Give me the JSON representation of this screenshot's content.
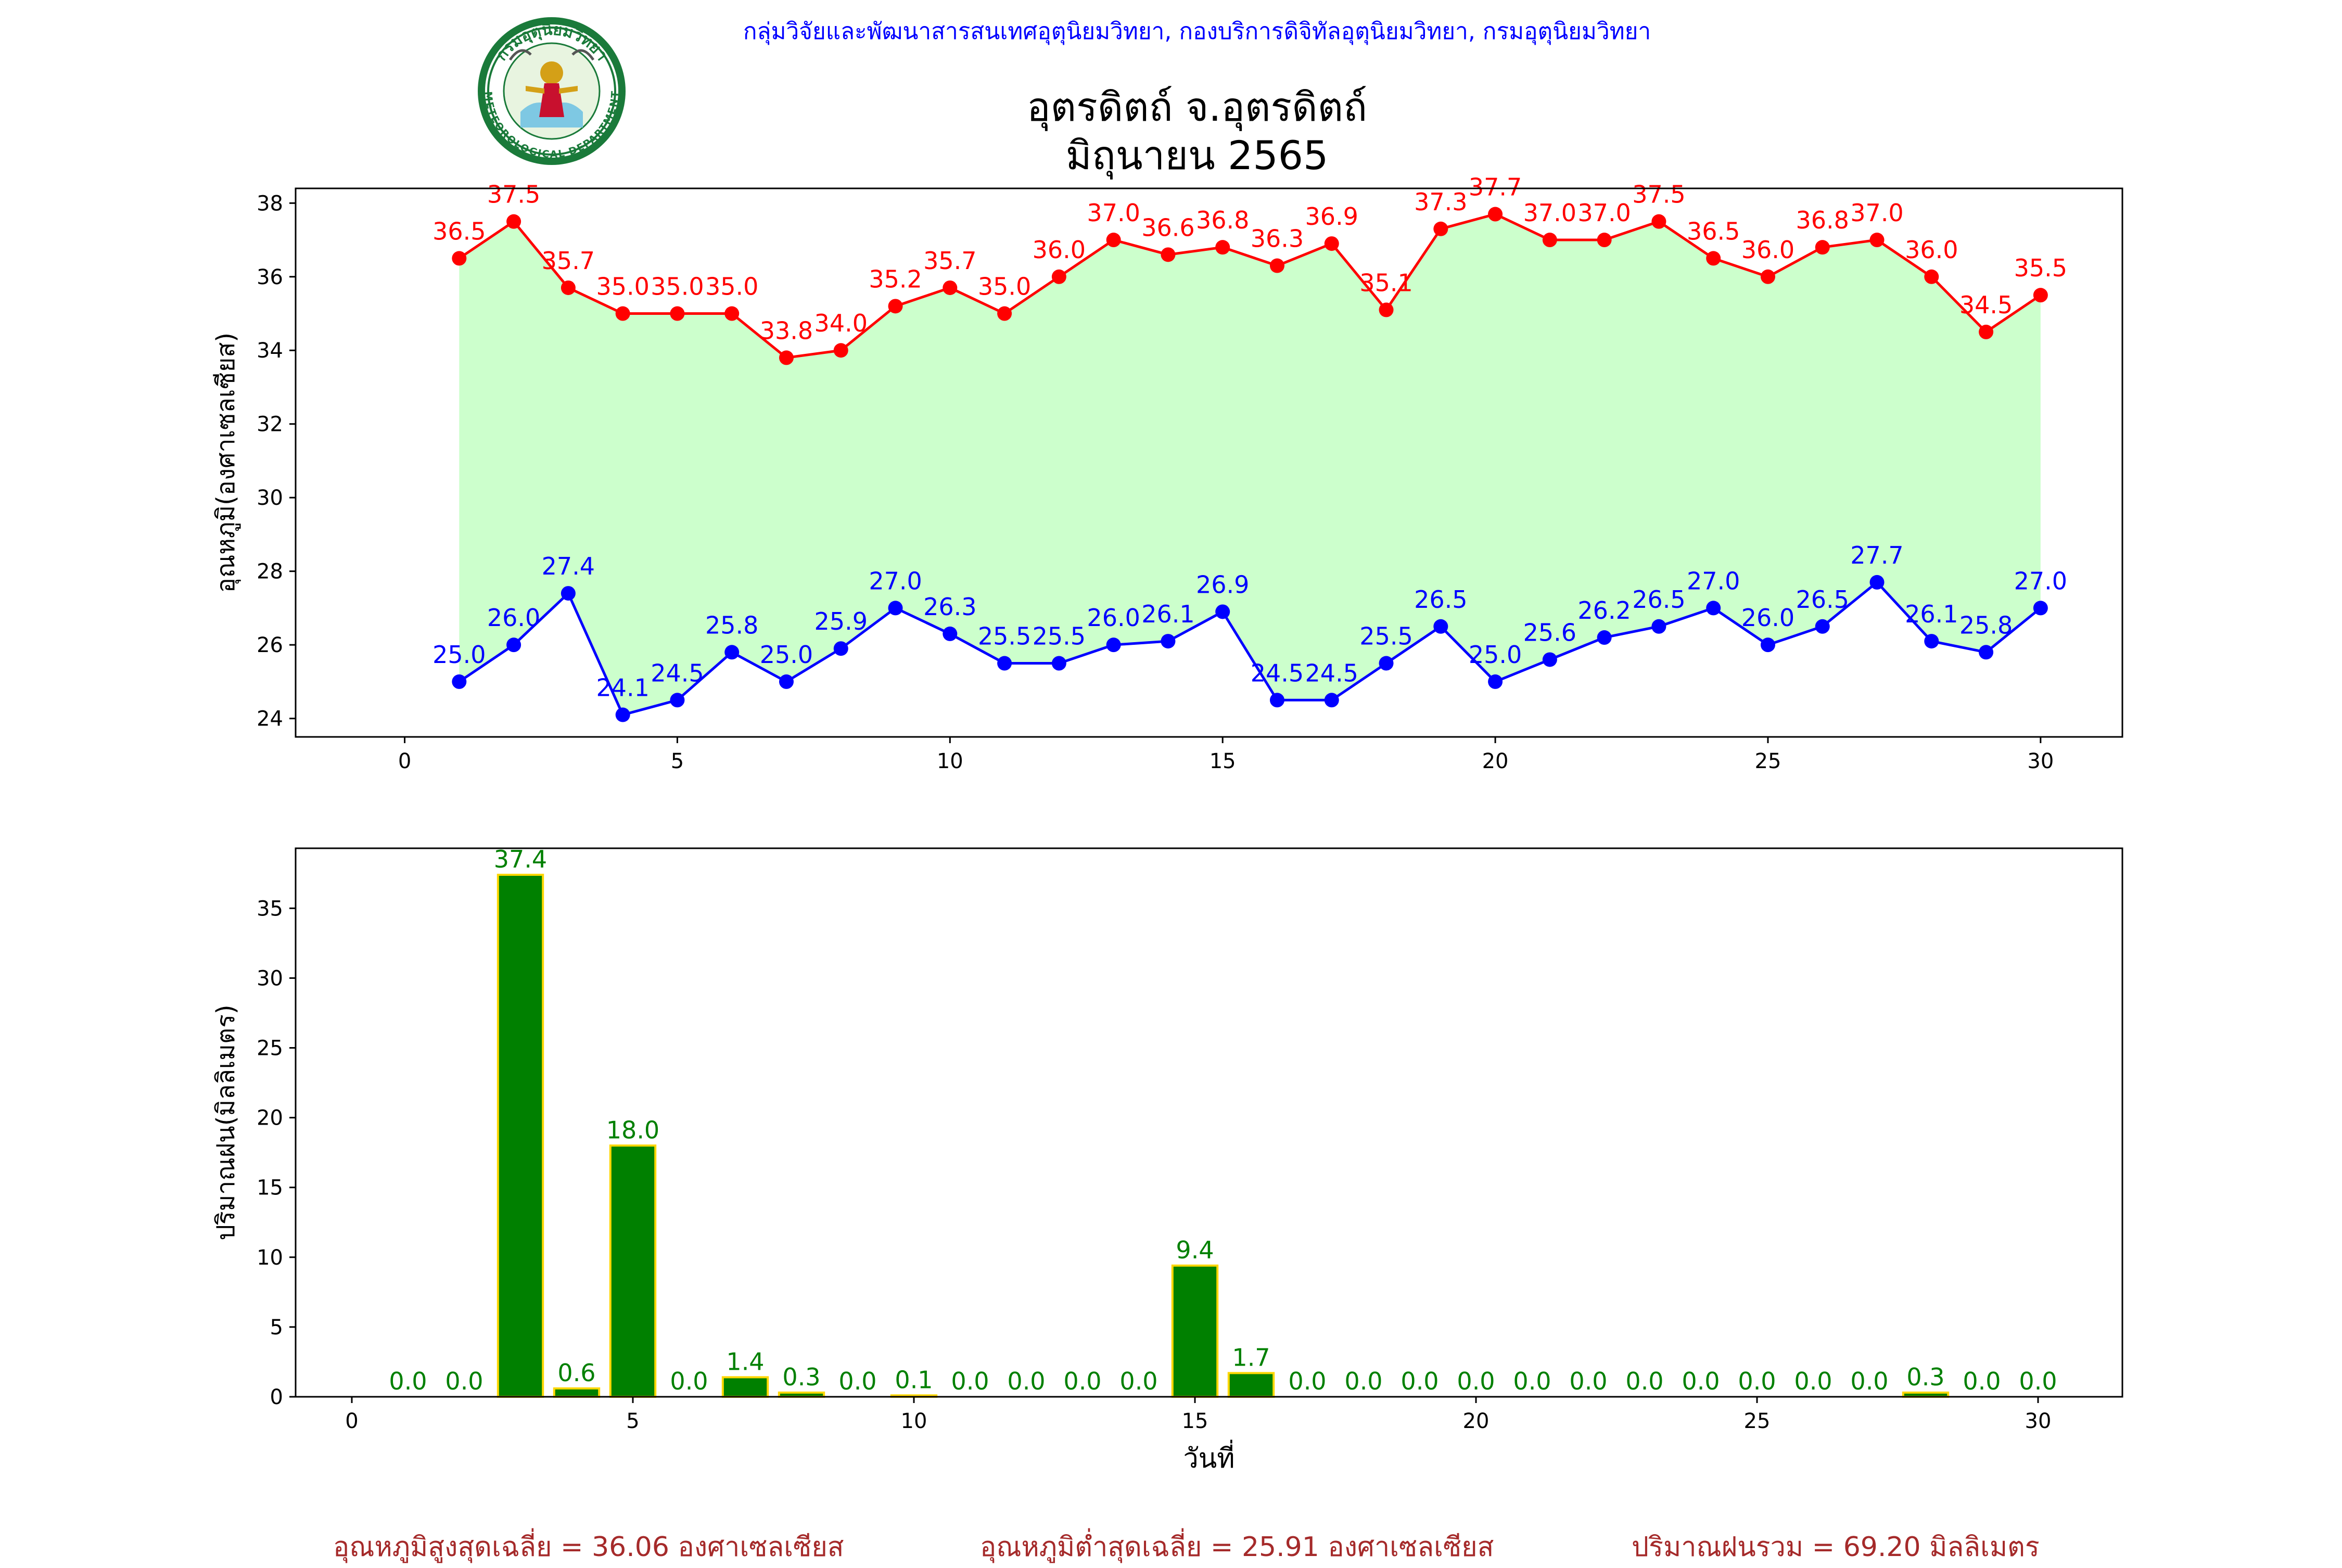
{
  "header": {
    "org_line": "กลุ่มวิจัยและพัฒนาสารสนเทศอุตุนิยมวิทยา, กองบริการดิจิทัลอุตุนิยมวิทยา, กรมอุตุนิยมวิทยา",
    "station_title": "อุตรดิตถ์ จ.อุตรดิตถ์",
    "period_title": "มิถุนายน 2565",
    "logo_text_top": "กรมอุตุนิยมวิทยา",
    "logo_text_bottom": "METEOROLOGICAL DEPARTMENT"
  },
  "colors": {
    "max_line": "#ff0000",
    "min_line": "#0000ff",
    "range_fill": "#ccffcc",
    "rain_bar": "#008000",
    "rain_edge": "#ffd700",
    "rain_label": "#008000",
    "footer_text": "#a52a2a",
    "header_text": "#0000ff"
  },
  "chart_data": [
    {
      "type": "line",
      "ylabel": "อุณหภูมิ(องศาเซลเซียส)",
      "xlabel": "",
      "xlim": [
        -2,
        31.5
      ],
      "ylim": [
        23.5,
        38.4
      ],
      "xticks": [
        0,
        5,
        10,
        15,
        20,
        25,
        30
      ],
      "yticks": [
        24,
        26,
        28,
        30,
        32,
        34,
        36,
        38
      ],
      "x": [
        1,
        2,
        3,
        4,
        5,
        6,
        7,
        8,
        9,
        10,
        11,
        12,
        13,
        14,
        15,
        16,
        17,
        18,
        19,
        20,
        21,
        22,
        23,
        24,
        25,
        26,
        27,
        28,
        29,
        30
      ],
      "series": [
        {
          "key": "max",
          "values": [
            36.5,
            37.5,
            35.7,
            35.0,
            35.0,
            35.0,
            33.8,
            34.0,
            35.2,
            35.7,
            35.0,
            36.0,
            37.0,
            36.6,
            36.8,
            36.3,
            36.9,
            35.1,
            37.3,
            37.7,
            37.0,
            37.0,
            37.5,
            36.5,
            36.0,
            36.8,
            37.0,
            36.0,
            34.5,
            35.5
          ]
        },
        {
          "key": "min",
          "values": [
            25.0,
            26.0,
            27.4,
            24.1,
            24.5,
            25.8,
            25.0,
            25.9,
            27.0,
            26.3,
            25.5,
            25.5,
            26.0,
            26.1,
            26.9,
            24.5,
            24.5,
            25.5,
            26.5,
            25.0,
            25.6,
            26.2,
            26.5,
            27.0,
            26.0,
            26.5,
            27.7,
            26.1,
            25.8,
            27.0
          ]
        }
      ],
      "fill_between": true,
      "grid": false
    },
    {
      "type": "bar",
      "ylabel": "ปริมาณฝน(มิลลิเมตร)",
      "xlabel": "วันที่",
      "xlim": [
        -1,
        31.5
      ],
      "ylim": [
        0,
        39.3
      ],
      "xticks": [
        0,
        5,
        10,
        15,
        20,
        25,
        30
      ],
      "yticks": [
        0,
        5,
        10,
        15,
        20,
        25,
        30,
        35
      ],
      "x": [
        1,
        2,
        3,
        4,
        5,
        6,
        7,
        8,
        9,
        10,
        11,
        12,
        13,
        14,
        15,
        16,
        17,
        18,
        19,
        20,
        21,
        22,
        23,
        24,
        25,
        26,
        27,
        28,
        29,
        30
      ],
      "values": [
        0.0,
        0.0,
        37.4,
        0.6,
        18.0,
        0.0,
        1.4,
        0.3,
        0.0,
        0.1,
        0.0,
        0.0,
        0.0,
        0.0,
        9.4,
        1.7,
        0.0,
        0.0,
        0.0,
        0.0,
        0.0,
        0.0,
        0.0,
        0.0,
        0.0,
        0.0,
        0.0,
        0.3,
        0.0,
        0.0
      ],
      "grid": false
    }
  ],
  "footer": {
    "avg_max": "อุณหภูมิสูงสุดเฉลี่ย = 36.06 องศาเซลเซียส",
    "avg_min": "อุณหภูมิต่ำสุดเฉลี่ย = 25.91 องศาเซลเซียส",
    "total_rain": "ปริมาณฝนรวม = 69.20 มิลลิเมตร"
  }
}
